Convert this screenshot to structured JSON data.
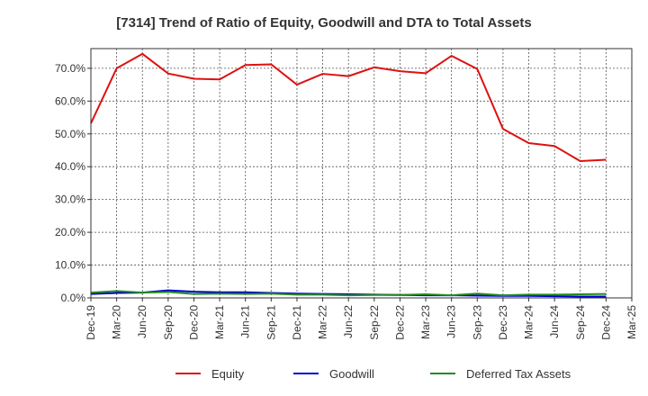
{
  "chart_data": {
    "type": "line",
    "title": "[7314]  Trend of Ratio of Equity, Goodwill and DTA to Total Assets",
    "x_tick_labels": [
      "Dec-19",
      "Mar-20",
      "Jun-20",
      "Sep-20",
      "Dec-20",
      "Mar-21",
      "Jun-21",
      "Sep-21",
      "Dec-21",
      "Mar-22",
      "Jun-22",
      "Sep-22",
      "Dec-22",
      "Mar-23",
      "Jun-23",
      "Sep-23",
      "Dec-23",
      "Mar-24",
      "Jun-24",
      "Sep-24",
      "Dec-24",
      "Mar-25"
    ],
    "y_tick_labels": [
      "0.0%",
      "10.0%",
      "20.0%",
      "30.0%",
      "40.0%",
      "50.0%",
      "60.0%",
      "70.0%"
    ],
    "ylim": [
      0,
      76
    ],
    "grid": true,
    "legend_position": "bottom",
    "series": [
      {
        "name": "Equity",
        "color": "#dd1111",
        "x": [
          "Dec-19",
          "Mar-20",
          "Jun-20",
          "Sep-20",
          "Dec-20",
          "Mar-21",
          "Jun-21",
          "Sep-21",
          "Dec-21",
          "Mar-22",
          "Jun-22",
          "Sep-22",
          "Dec-22",
          "Mar-23",
          "Jun-23",
          "Sep-23",
          "Dec-23",
          "Mar-24",
          "Jun-24",
          "Sep-24",
          "Dec-24"
        ],
        "values": [
          53.2,
          70.0,
          74.4,
          68.4,
          66.8,
          66.6,
          71.0,
          71.2,
          65.0,
          68.3,
          67.6,
          70.3,
          69.1,
          68.5,
          73.8,
          69.8,
          51.5,
          47.2,
          46.3,
          41.7,
          42.1
        ]
      },
      {
        "name": "Goodwill",
        "color": "#0000cc",
        "x": [
          "Dec-19",
          "Mar-20",
          "Jun-20",
          "Sep-20",
          "Dec-20",
          "Mar-21",
          "Jun-21",
          "Sep-21",
          "Dec-21",
          "Mar-22",
          "Jun-22",
          "Sep-22",
          "Dec-22",
          "Mar-23",
          "Jun-23",
          "Sep-23",
          "Dec-23",
          "Mar-24",
          "Jun-24",
          "Sep-24",
          "Dec-24"
        ],
        "values": [
          1.2,
          1.5,
          1.6,
          2.3,
          1.9,
          1.7,
          1.7,
          1.5,
          1.3,
          1.2,
          1.1,
          1.0,
          0.9,
          0.8,
          0.8,
          0.7,
          0.6,
          0.6,
          0.5,
          0.4,
          0.4
        ]
      },
      {
        "name": "Deferred Tax Assets",
        "color": "#228b22",
        "x": [
          "Dec-19",
          "Mar-20",
          "Jun-20",
          "Sep-20",
          "Dec-20",
          "Mar-21",
          "Jun-21",
          "Sep-21",
          "Dec-21",
          "Mar-22",
          "Jun-22",
          "Sep-22",
          "Dec-22",
          "Mar-23",
          "Jun-23",
          "Sep-23",
          "Dec-23",
          "Mar-24",
          "Jun-24",
          "Sep-24",
          "Dec-24"
        ],
        "values": [
          1.6,
          2.1,
          1.6,
          1.8,
          1.2,
          1.3,
          1.2,
          1.3,
          1.0,
          1.0,
          0.8,
          0.9,
          0.9,
          1.1,
          0.8,
          1.3,
          0.8,
          1.0,
          1.0,
          1.1,
          1.2
        ]
      }
    ]
  }
}
